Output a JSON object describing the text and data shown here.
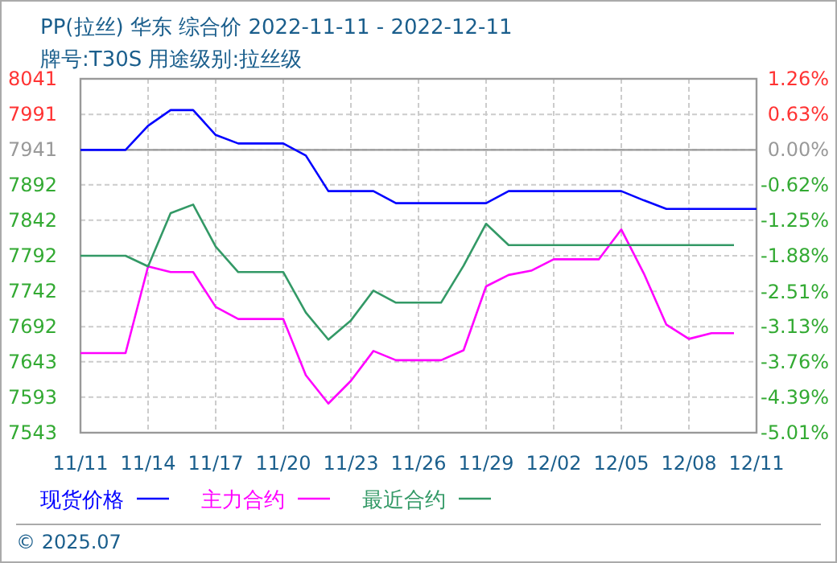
{
  "chart_data": {
    "type": "line",
    "title": "PP(拉丝) 华东 综合价 2022-11-11 - 2022-12-11",
    "subtitle": "牌号:T30S 用途级别:拉丝级",
    "x": [
      "2022-11-11",
      "2022-11-12",
      "2022-11-13",
      "2022-11-14",
      "2022-11-15",
      "2022-11-16",
      "2022-11-17",
      "2022-11-18",
      "2022-11-19",
      "2022-11-20",
      "2022-11-21",
      "2022-11-22",
      "2022-11-23",
      "2022-11-24",
      "2022-11-25",
      "2022-11-26",
      "2022-11-27",
      "2022-11-28",
      "2022-11-29",
      "2022-11-30",
      "2022-12-01",
      "2022-12-02",
      "2022-12-03",
      "2022-12-04",
      "2022-12-05",
      "2022-12-06",
      "2022-12-07",
      "2022-12-08",
      "2022-12-09",
      "2022-12-10",
      "2022-12-11"
    ],
    "series": [
      {
        "name": "现货价格",
        "color": "#0000ff",
        "values": [
          7941,
          7941,
          7941,
          7975,
          7997,
          7997,
          7962,
          7950,
          7950,
          7950,
          7933,
          7883,
          7883,
          7883,
          7866,
          7866,
          7866,
          7866,
          7866,
          7883,
          7883,
          7883,
          7883,
          7883,
          7883,
          7870,
          7858,
          7858,
          7858,
          7858,
          7858
        ]
      },
      {
        "name": "主力合约",
        "color": "#ff00ff",
        "values": [
          7655,
          7655,
          7655,
          7777,
          7769,
          7769,
          7720,
          7703,
          7703,
          7703,
          7624,
          7584,
          7616,
          7658,
          7645,
          7645,
          7645,
          7659,
          7749,
          7765,
          7771,
          7787,
          7787,
          7787,
          7829,
          7767,
          7695,
          7675,
          7683,
          7683,
          null
        ]
      },
      {
        "name": "最近合约",
        "color": "#339966",
        "values": [
          7792,
          7792,
          7792,
          7777,
          7852,
          7864,
          7805,
          7769,
          7769,
          7769,
          7712,
          7674,
          7701,
          7743,
          7726,
          7726,
          7726,
          7778,
          7837,
          7807,
          7807,
          7807,
          7807,
          7807,
          7807,
          7807,
          7807,
          7807,
          7807,
          7807,
          null
        ]
      }
    ],
    "xlim": [
      "2022-11-11",
      "2022-12-11"
    ],
    "xticks": [
      {
        "value": "2022-11-11",
        "label": "11/11"
      },
      {
        "value": "2022-11-14",
        "label": "11/14"
      },
      {
        "value": "2022-11-17",
        "label": "11/17"
      },
      {
        "value": "2022-11-20",
        "label": "11/20"
      },
      {
        "value": "2022-11-23",
        "label": "11/23"
      },
      {
        "value": "2022-11-26",
        "label": "11/26"
      },
      {
        "value": "2022-11-29",
        "label": "11/29"
      },
      {
        "value": "2022-12-02",
        "label": "12/02"
      },
      {
        "value": "2022-12-05",
        "label": "12/05"
      },
      {
        "value": "2022-12-08",
        "label": "12/08"
      },
      {
        "value": "2022-12-11",
        "label": "12/11"
      }
    ],
    "ylim": [
      7543,
      8041
    ],
    "yticks": [
      7543,
      7593,
      7643,
      7692,
      7742,
      7792,
      7842,
      7892,
      7941,
      7991,
      8041
    ],
    "y2lim": [
      -5.01,
      1.26
    ],
    "y2ticks": [
      {
        "value": -5.01,
        "label": "-5.01%"
      },
      {
        "value": -4.39,
        "label": "-4.39%"
      },
      {
        "value": -3.76,
        "label": "-3.76%"
      },
      {
        "value": -3.13,
        "label": "-3.13%"
      },
      {
        "value": -2.51,
        "label": "-2.51%"
      },
      {
        "value": -1.88,
        "label": "-1.88%"
      },
      {
        "value": -1.25,
        "label": "-1.25%"
      },
      {
        "value": -0.62,
        "label": "-0.62%"
      },
      {
        "value": 0,
        "label": "0.00%"
      },
      {
        "value": 0.63,
        "label": "0.63%"
      },
      {
        "value": 1.26,
        "label": "1.26%"
      }
    ],
    "ref_lines": [
      {
        "axis": "y",
        "value": 7941,
        "color": "#999999"
      }
    ],
    "grid": true,
    "legend": "bottom",
    "annotations": [
      "© 2025.07"
    ]
  }
}
